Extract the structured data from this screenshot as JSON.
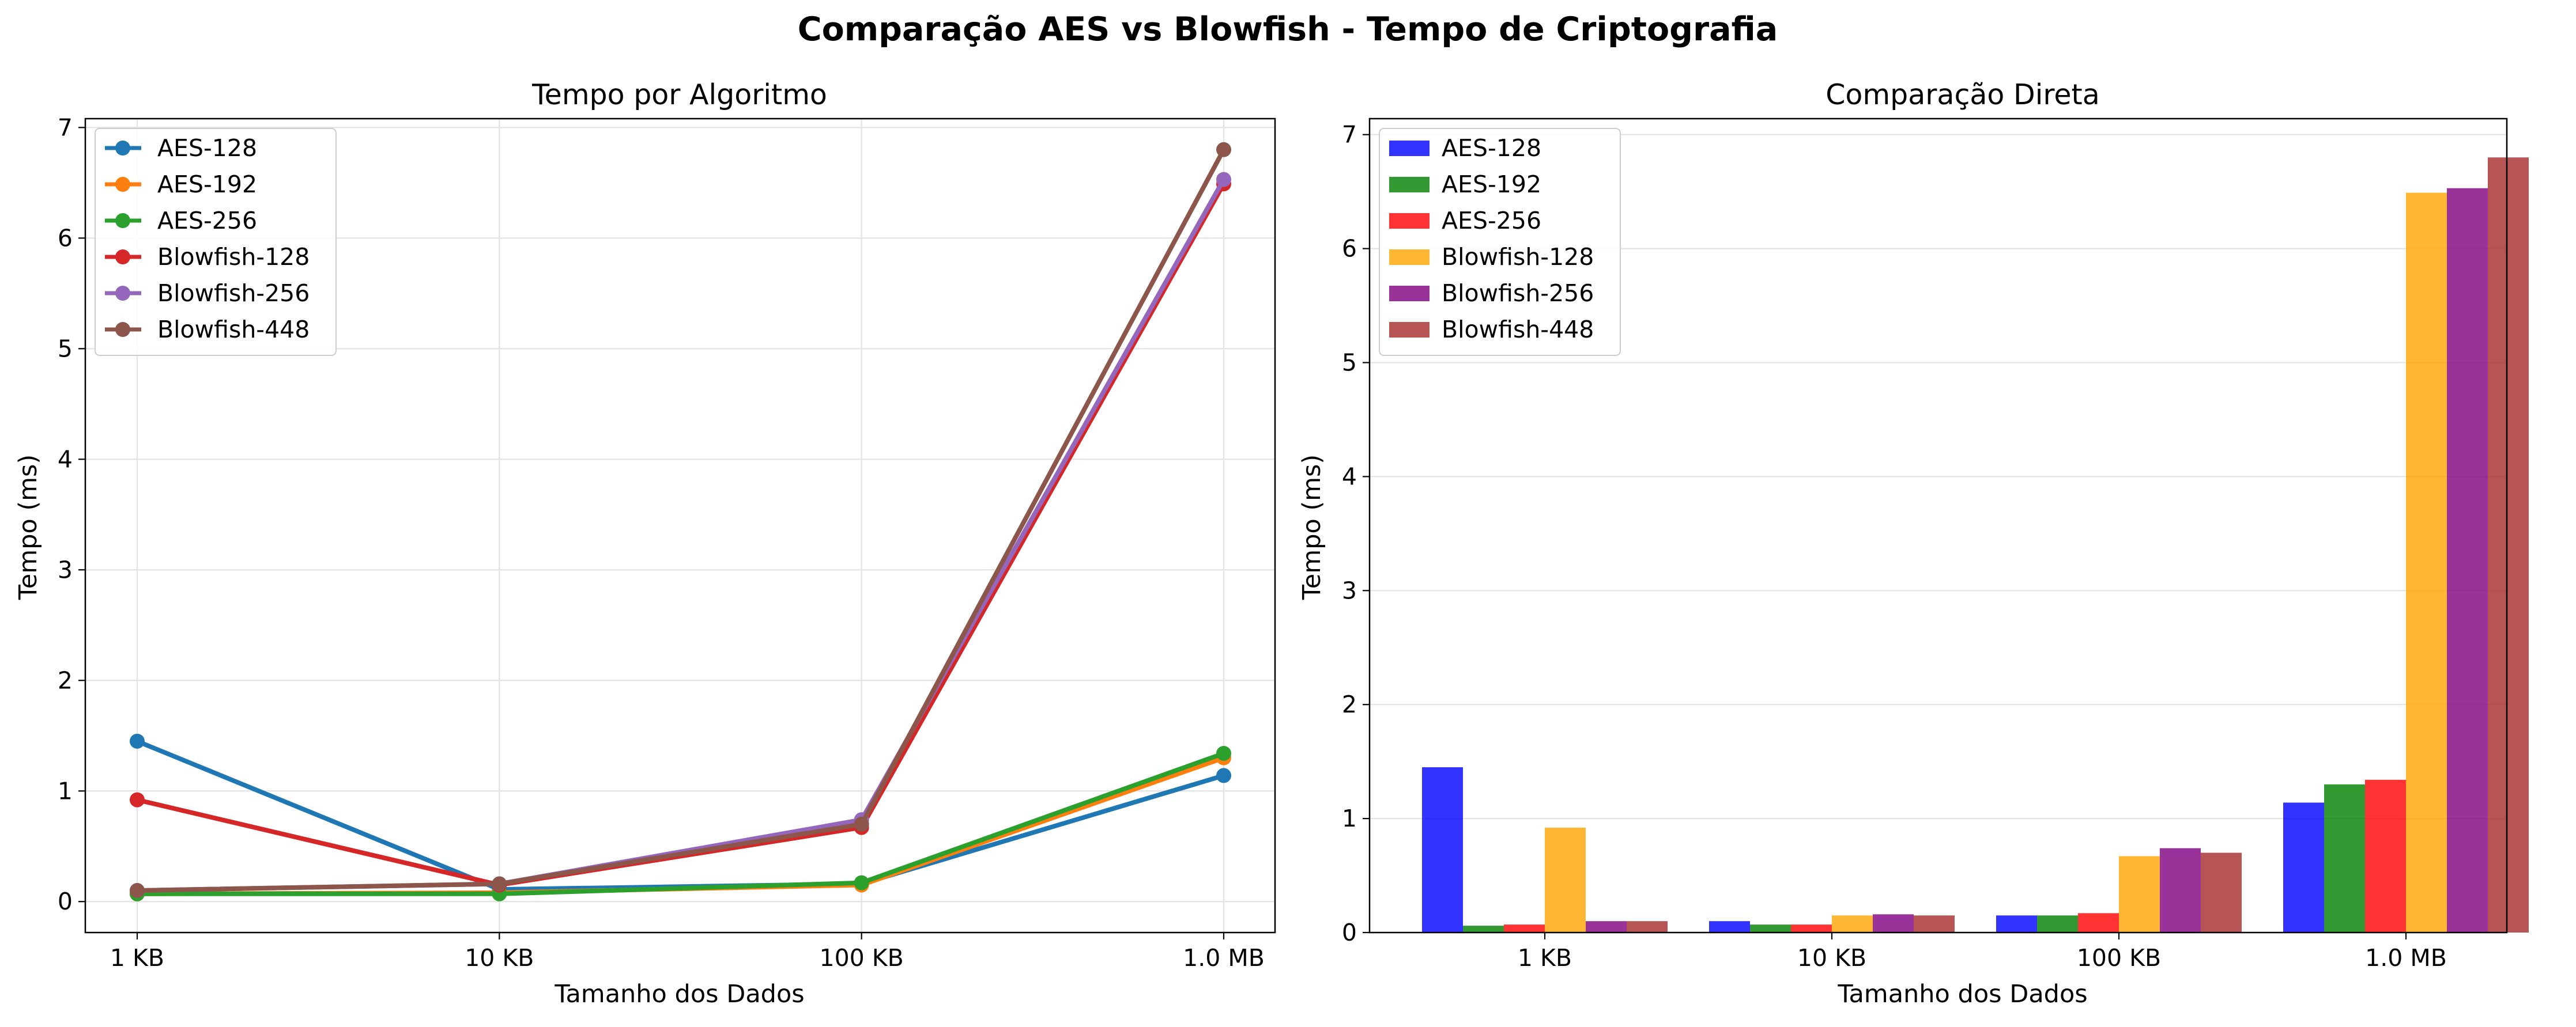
{
  "figure": {
    "suptitle": "Comparação AES vs Blowfish - Tempo de Criptografia"
  },
  "chart_data": [
    {
      "type": "line",
      "title": "Tempo por Algoritmo",
      "xlabel": "Tamanho dos Dados",
      "ylabel": "Tempo (ms)",
      "categories": [
        "1 KB",
        "10 KB",
        "100 KB",
        "1.0 MB"
      ],
      "ylim": [
        -0.28,
        7.08
      ],
      "yticks": [
        0,
        1,
        2,
        3,
        4,
        5,
        6,
        7
      ],
      "grid": true,
      "legend": "top-left",
      "series": [
        {
          "name": "AES-128",
          "color": "#1f77b4",
          "values": [
            1.45,
            0.11,
            0.16,
            1.14
          ]
        },
        {
          "name": "AES-192",
          "color": "#ff7f0e",
          "values": [
            0.07,
            0.08,
            0.15,
            1.3
          ]
        },
        {
          "name": "AES-256",
          "color": "#2ca02c",
          "values": [
            0.07,
            0.07,
            0.17,
            1.34
          ]
        },
        {
          "name": "Blowfish-128",
          "color": "#d62728",
          "values": [
            0.92,
            0.15,
            0.67,
            6.49
          ]
        },
        {
          "name": "Blowfish-256",
          "color": "#9467bd",
          "values": [
            0.1,
            0.16,
            0.74,
            6.53
          ]
        },
        {
          "name": "Blowfish-448",
          "color": "#8c564b",
          "values": [
            0.1,
            0.16,
            0.7,
            6.8
          ]
        }
      ]
    },
    {
      "type": "bar",
      "title": "Comparação Direta",
      "xlabel": "Tamanho dos Dados",
      "ylabel": "Tempo (ms)",
      "categories": [
        "1 KB",
        "10 KB",
        "100 KB",
        "1.0 MB"
      ],
      "ylim": [
        0,
        7.14
      ],
      "yticks": [
        0,
        1,
        2,
        3,
        4,
        5,
        6,
        7
      ],
      "grid": true,
      "legend": "top-left",
      "series": [
        {
          "name": "AES-128",
          "color": "#0000ff",
          "values": [
            1.45,
            0.1,
            0.15,
            1.14
          ]
        },
        {
          "name": "AES-192",
          "color": "#008000",
          "values": [
            0.06,
            0.07,
            0.15,
            1.3
          ]
        },
        {
          "name": "AES-256",
          "color": "#ff0000",
          "values": [
            0.07,
            0.07,
            0.17,
            1.34
          ]
        },
        {
          "name": "Blowfish-128",
          "color": "#ffa500",
          "values": [
            0.92,
            0.15,
            0.67,
            6.49
          ]
        },
        {
          "name": "Blowfish-256",
          "color": "#800080",
          "values": [
            0.1,
            0.16,
            0.74,
            6.53
          ]
        },
        {
          "name": "Blowfish-448",
          "color": "#a52a2a",
          "values": [
            0.1,
            0.15,
            0.7,
            6.8
          ]
        }
      ]
    }
  ]
}
